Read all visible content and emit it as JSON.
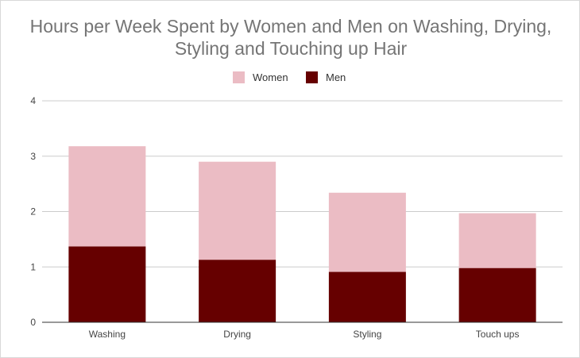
{
  "chart_data": {
    "type": "bar",
    "stacked": true,
    "title_line1": "Hours per Week Spent by Women and Men on Washing, Drying,",
    "title_line2": "Styling and Touching up Hair",
    "categories": [
      "Washing",
      "Drying",
      "Styling",
      "Touch ups"
    ],
    "series": [
      {
        "name": "Men",
        "color": "#660000",
        "values": [
          1.37,
          1.13,
          0.91,
          0.98
        ]
      },
      {
        "name": "Women",
        "color": "#ebbcc4",
        "values": [
          1.81,
          1.77,
          1.43,
          0.99
        ]
      }
    ],
    "legend_order": [
      "Women",
      "Men"
    ],
    "legend_position": "top",
    "ylim": [
      0,
      4
    ],
    "yticks": [
      "0",
      "1",
      "2",
      "3",
      "4"
    ],
    "grid": true,
    "xlabel": "",
    "ylabel": ""
  }
}
